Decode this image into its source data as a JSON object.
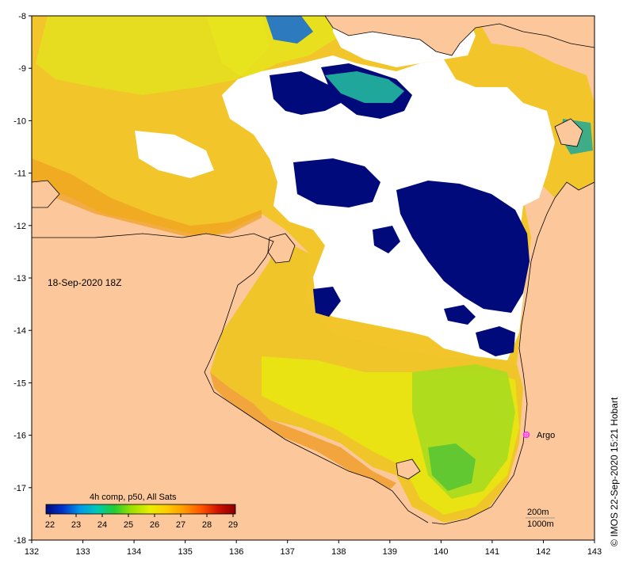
{
  "map": {
    "date_label": "18-Sep-2020 18Z",
    "marker_label": "Argo",
    "credit": "© IMOS 22-Sep-2020 15:21 Hobart",
    "legend_scale_note": [
      "200m",
      "1000m"
    ],
    "colorbar": {
      "title": "4h comp, p50, All Sats",
      "ticks": [
        "22",
        "23",
        "24",
        "25",
        "26",
        "27",
        "28",
        "29"
      ],
      "colors": [
        "#000a7a",
        "#0033cc",
        "#0099e6",
        "#00c8b4",
        "#22cc33",
        "#9be000",
        "#e8ee00",
        "#ffcc00",
        "#ff9900",
        "#ff5500",
        "#cc1100",
        "#8b0000"
      ]
    },
    "x_ticks": [
      "132",
      "133",
      "134",
      "135",
      "136",
      "137",
      "138",
      "139",
      "140",
      "141",
      "142",
      "143"
    ],
    "y_ticks": [
      "-8",
      "-9",
      "-10",
      "-11",
      "-12",
      "-13",
      "-14",
      "-15",
      "-16",
      "-17",
      "-18"
    ],
    "colors": {
      "land": "#fcc89b",
      "no_data": "#ffffff",
      "cold": "#000a7a",
      "warm_sea": "#f7c21c",
      "mid_sea": "#e6e60a",
      "marker": "#ff33ff"
    }
  }
}
